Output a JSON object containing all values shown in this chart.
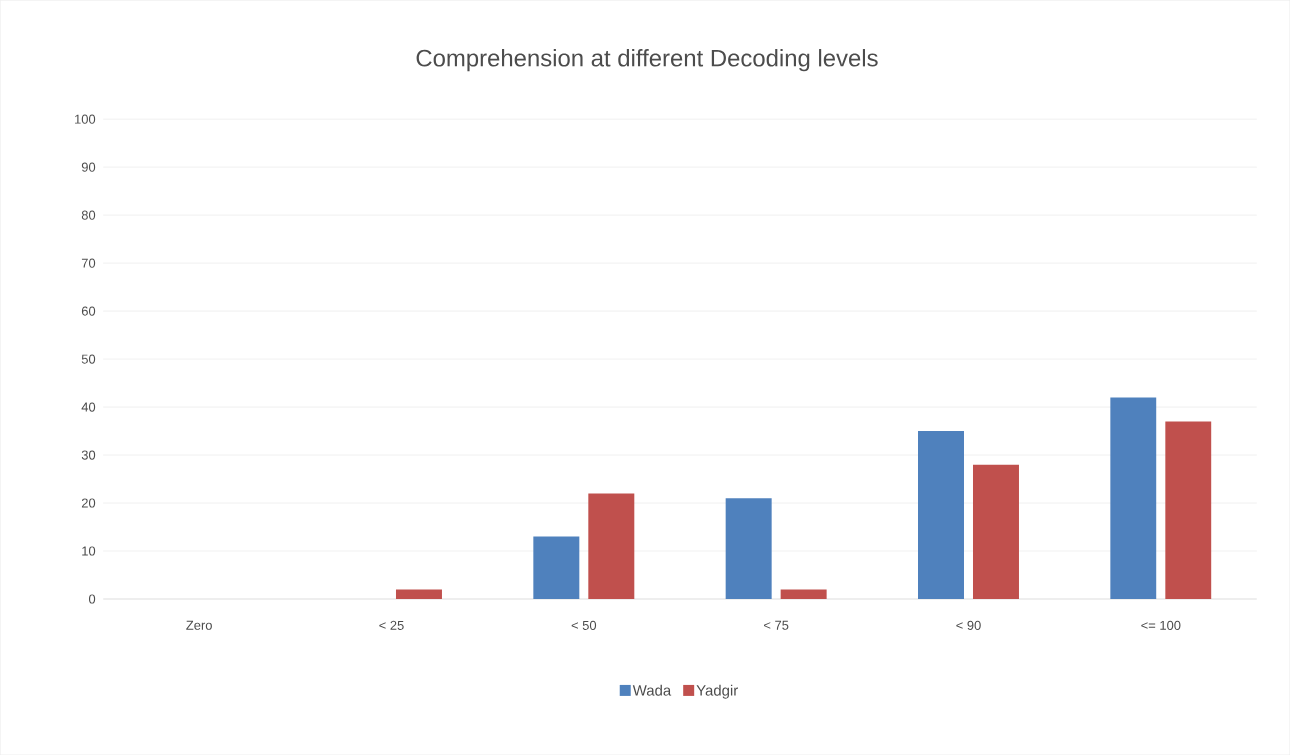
{
  "chart_data": {
    "type": "bar",
    "title": "Comprehension at different Decoding levels",
    "categories": [
      "Zero",
      "< 25",
      "< 50",
      "< 75",
      "< 90",
      "<= 100"
    ],
    "series": [
      {
        "name": "Wada",
        "color": "#4f81bd",
        "values": [
          0,
          0,
          13,
          21,
          35,
          42
        ]
      },
      {
        "name": "Yadgir",
        "color": "#c0504d",
        "values": [
          0,
          2,
          22,
          2,
          28,
          37
        ]
      }
    ],
    "ylim": [
      0,
      100
    ],
    "yticks": [
      0,
      10,
      20,
      30,
      40,
      50,
      60,
      70,
      80,
      90,
      100
    ],
    "grid": "y",
    "legend": "bottom"
  }
}
